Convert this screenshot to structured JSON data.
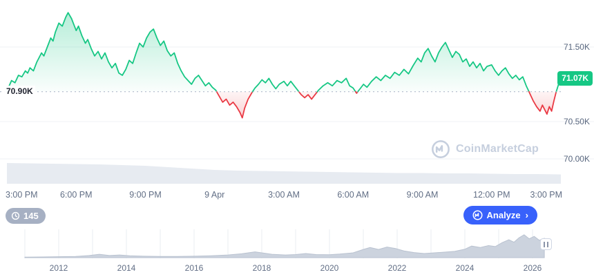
{
  "watermark": {
    "text": "CoinMarketCap"
  },
  "controls": {
    "history_count": "145",
    "analyze_label": "Analyze",
    "analyze_chevron": "›"
  },
  "chart_data": [
    {
      "type": "line",
      "name": "price-last-24h",
      "baseline_value": 70.9,
      "baseline_label": "70.90K",
      "last_price_value": 71.07,
      "last_price_label": "71.07K",
      "ylim": [
        69.95,
        72.0
      ],
      "colors": {
        "up": "#16c784",
        "down": "#ea3943",
        "grid": "#eff2f5",
        "baseline_dots": "#a6b0c3",
        "volume": "#e7ebf1"
      },
      "y_ticks": [
        {
          "value": 71.5,
          "label": "71.50K"
        },
        {
          "value": 70.5,
          "label": "70.50K"
        },
        {
          "value": 70.0,
          "label": "70.00K"
        }
      ],
      "x_ticks": [
        {
          "t": 0,
          "label": "3:00 PM"
        },
        {
          "t": 3,
          "label": "6:00 PM"
        },
        {
          "t": 6,
          "label": "9:00 PM"
        },
        {
          "t": 9,
          "label": "9 Apr"
        },
        {
          "t": 12,
          "label": "3:00 AM"
        },
        {
          "t": 15,
          "label": "6:00 AM"
        },
        {
          "t": 18,
          "label": "9:00 AM"
        },
        {
          "t": 21,
          "label": "12:00 PM"
        },
        {
          "t": 24,
          "label": "3:00 PM"
        }
      ],
      "points": [
        [
          0,
          70.9
        ],
        [
          0.1,
          70.98
        ],
        [
          0.2,
          71.05
        ],
        [
          0.35,
          71.02
        ],
        [
          0.5,
          71.12
        ],
        [
          0.65,
          71.1
        ],
        [
          0.8,
          71.18
        ],
        [
          0.9,
          71.15
        ],
        [
          1,
          71.22
        ],
        [
          1.15,
          71.18
        ],
        [
          1.3,
          71.3
        ],
        [
          1.5,
          71.42
        ],
        [
          1.6,
          71.38
        ],
        [
          1.75,
          71.5
        ],
        [
          1.9,
          71.62
        ],
        [
          2,
          71.58
        ],
        [
          2.1,
          71.7
        ],
        [
          2.25,
          71.82
        ],
        [
          2.4,
          71.78
        ],
        [
          2.55,
          71.9
        ],
        [
          2.65,
          71.96
        ],
        [
          2.8,
          71.88
        ],
        [
          2.9,
          71.8
        ],
        [
          3,
          71.72
        ],
        [
          3.1,
          71.78
        ],
        [
          3.25,
          71.65
        ],
        [
          3.4,
          71.55
        ],
        [
          3.5,
          71.6
        ],
        [
          3.65,
          71.48
        ],
        [
          3.8,
          71.38
        ],
        [
          3.95,
          71.44
        ],
        [
          4.1,
          71.34
        ],
        [
          4.25,
          71.42
        ],
        [
          4.4,
          71.3
        ],
        [
          4.55,
          71.22
        ],
        [
          4.7,
          71.28
        ],
        [
          4.85,
          71.15
        ],
        [
          5,
          71.12
        ],
        [
          5.15,
          71.2
        ],
        [
          5.3,
          71.32
        ],
        [
          5.45,
          71.28
        ],
        [
          5.6,
          71.42
        ],
        [
          5.75,
          71.55
        ],
        [
          5.9,
          71.5
        ],
        [
          6.05,
          71.62
        ],
        [
          6.2,
          71.7
        ],
        [
          6.35,
          71.74
        ],
        [
          6.5,
          71.62
        ],
        [
          6.65,
          71.52
        ],
        [
          6.8,
          71.58
        ],
        [
          6.95,
          71.45
        ],
        [
          7.1,
          71.38
        ],
        [
          7.25,
          71.42
        ],
        [
          7.4,
          71.28
        ],
        [
          7.55,
          71.18
        ],
        [
          7.7,
          71.1
        ],
        [
          7.85,
          71.05
        ],
        [
          8,
          71
        ],
        [
          8.15,
          71.08
        ],
        [
          8.3,
          71.12
        ],
        [
          8.45,
          71.05
        ],
        [
          8.6,
          70.98
        ],
        [
          8.75,
          71.02
        ],
        [
          8.9,
          70.96
        ],
        [
          9.05,
          70.92
        ],
        [
          9.2,
          70.84
        ],
        [
          9.35,
          70.76
        ],
        [
          9.5,
          70.8
        ],
        [
          9.65,
          70.72
        ],
        [
          9.8,
          70.76
        ],
        [
          9.95,
          70.7
        ],
        [
          10.1,
          70.62
        ],
        [
          10.2,
          70.55
        ],
        [
          10.3,
          70.68
        ],
        [
          10.45,
          70.8
        ],
        [
          10.6,
          70.88
        ],
        [
          10.75,
          70.95
        ],
        [
          10.9,
          71
        ],
        [
          11.05,
          71.06
        ],
        [
          11.2,
          71.02
        ],
        [
          11.35,
          71.08
        ],
        [
          11.5,
          71
        ],
        [
          11.65,
          70.94
        ],
        [
          11.8,
          71
        ],
        [
          12,
          71.04
        ],
        [
          12.15,
          70.98
        ],
        [
          12.3,
          71.04
        ],
        [
          12.45,
          70.98
        ],
        [
          12.6,
          70.92
        ],
        [
          12.75,
          70.86
        ],
        [
          12.9,
          70.82
        ],
        [
          13.05,
          70.86
        ],
        [
          13.2,
          70.8
        ],
        [
          13.35,
          70.86
        ],
        [
          13.5,
          70.92
        ],
        [
          13.7,
          70.98
        ],
        [
          13.9,
          71.02
        ],
        [
          14.1,
          70.98
        ],
        [
          14.3,
          71.05
        ],
        [
          14.5,
          71.02
        ],
        [
          14.7,
          71.08
        ],
        [
          14.85,
          70.98
        ],
        [
          15,
          70.95
        ],
        [
          15.15,
          70.88
        ],
        [
          15.3,
          70.94
        ],
        [
          15.45,
          71
        ],
        [
          15.6,
          70.96
        ],
        [
          15.8,
          71.04
        ],
        [
          16,
          71.1
        ],
        [
          16.2,
          71.05
        ],
        [
          16.4,
          71.12
        ],
        [
          16.6,
          71.08
        ],
        [
          16.8,
          71.16
        ],
        [
          17,
          71.12
        ],
        [
          17.2,
          71.2
        ],
        [
          17.4,
          71.14
        ],
        [
          17.6,
          71.25
        ],
        [
          17.8,
          71.35
        ],
        [
          17.95,
          71.3
        ],
        [
          18.1,
          71.42
        ],
        [
          18.25,
          71.48
        ],
        [
          18.4,
          71.38
        ],
        [
          18.55,
          71.3
        ],
        [
          18.7,
          71.42
        ],
        [
          18.85,
          71.5
        ],
        [
          19,
          71.56
        ],
        [
          19.15,
          71.46
        ],
        [
          19.3,
          71.36
        ],
        [
          19.45,
          71.44
        ],
        [
          19.6,
          71.4
        ],
        [
          19.75,
          71.3
        ],
        [
          19.9,
          71.34
        ],
        [
          20.05,
          71.24
        ],
        [
          20.2,
          71.3
        ],
        [
          20.35,
          71.22
        ],
        [
          20.5,
          71.28
        ],
        [
          20.65,
          71.18
        ],
        [
          20.8,
          71.24
        ],
        [
          21,
          71.26
        ],
        [
          21.15,
          71.18
        ],
        [
          21.3,
          71.12
        ],
        [
          21.45,
          71.18
        ],
        [
          21.6,
          71.22
        ],
        [
          21.75,
          71.14
        ],
        [
          21.9,
          71.08
        ],
        [
          22.05,
          71.12
        ],
        [
          22.2,
          71.06
        ],
        [
          22.35,
          71.1
        ],
        [
          22.5,
          70.98
        ],
        [
          22.65,
          70.88
        ],
        [
          22.8,
          70.78
        ],
        [
          22.95,
          70.7
        ],
        [
          23.1,
          70.64
        ],
        [
          23.2,
          70.72
        ],
        [
          23.3,
          70.66
        ],
        [
          23.4,
          70.6
        ],
        [
          23.5,
          70.7
        ],
        [
          23.6,
          70.64
        ],
        [
          23.7,
          70.78
        ],
        [
          23.8,
          70.9
        ],
        [
          23.9,
          71
        ],
        [
          24,
          71.07
        ]
      ],
      "volume_profile": [
        [
          0,
          30
        ],
        [
          2,
          29
        ],
        [
          4,
          28
        ],
        [
          6,
          26
        ],
        [
          7,
          24
        ],
        [
          8,
          22
        ],
        [
          9,
          20
        ],
        [
          10,
          19
        ],
        [
          11,
          18.5
        ],
        [
          12,
          18
        ],
        [
          13,
          17.5
        ],
        [
          14,
          17
        ],
        [
          15,
          16.5
        ],
        [
          16,
          16
        ],
        [
          17,
          15.5
        ],
        [
          18,
          15.5
        ],
        [
          19,
          15
        ],
        [
          20,
          15
        ],
        [
          21,
          14.5
        ],
        [
          22,
          14
        ],
        [
          23,
          14
        ],
        [
          24,
          13.5
        ]
      ]
    },
    {
      "type": "area",
      "name": "all-time-navigator",
      "color": "#ccd3de",
      "edge_color": "#b9c2d0",
      "grid_color": "#e9ecf1",
      "xlim": [
        2011,
        2026.4
      ],
      "x_ticks": [
        {
          "x": 2012,
          "label": "2012"
        },
        {
          "x": 2014,
          "label": "2014"
        },
        {
          "x": 2016,
          "label": "2016"
        },
        {
          "x": 2018,
          "label": "2018"
        },
        {
          "x": 2020,
          "label": "2020"
        },
        {
          "x": 2022,
          "label": "2022"
        },
        {
          "x": 2024,
          "label": "2024"
        },
        {
          "x": 2026,
          "label": "2026"
        }
      ],
      "points": [
        [
          2011,
          0.02
        ],
        [
          2011.5,
          0.03
        ],
        [
          2012,
          0.04
        ],
        [
          2012.5,
          0.05
        ],
        [
          2012.9,
          0.09
        ],
        [
          2013.2,
          0.14
        ],
        [
          2013.5,
          0.09
        ],
        [
          2013.8,
          0.11
        ],
        [
          2014.1,
          0.08
        ],
        [
          2014.5,
          0.06
        ],
        [
          2015,
          0.05
        ],
        [
          2015.5,
          0.05
        ],
        [
          2016,
          0.06
        ],
        [
          2016.5,
          0.08
        ],
        [
          2017,
          0.11
        ],
        [
          2017.4,
          0.16
        ],
        [
          2017.8,
          0.24
        ],
        [
          2018,
          0.2
        ],
        [
          2018.3,
          0.14
        ],
        [
          2018.7,
          0.11
        ],
        [
          2019,
          0.13
        ],
        [
          2019.3,
          0.17
        ],
        [
          2019.6,
          0.13
        ],
        [
          2020,
          0.12
        ],
        [
          2020.3,
          0.15
        ],
        [
          2020.7,
          0.2
        ],
        [
          2021,
          0.34
        ],
        [
          2021.2,
          0.42
        ],
        [
          2021.45,
          0.34
        ],
        [
          2021.7,
          0.44
        ],
        [
          2021.95,
          0.38
        ],
        [
          2022.2,
          0.28
        ],
        [
          2022.5,
          0.21
        ],
        [
          2022.8,
          0.17
        ],
        [
          2023.1,
          0.2
        ],
        [
          2023.4,
          0.23
        ],
        [
          2023.7,
          0.26
        ],
        [
          2024,
          0.35
        ],
        [
          2024.2,
          0.48
        ],
        [
          2024.45,
          0.42
        ],
        [
          2024.7,
          0.5
        ],
        [
          2024.9,
          0.46
        ],
        [
          2025.1,
          0.62
        ],
        [
          2025.3,
          0.74
        ],
        [
          2025.45,
          0.64
        ],
        [
          2025.6,
          0.82
        ],
        [
          2025.75,
          0.95
        ],
        [
          2025.9,
          0.78
        ],
        [
          2026.05,
          0.88
        ],
        [
          2026.2,
          0.72
        ],
        [
          2026.35,
          0.8
        ]
      ]
    }
  ]
}
